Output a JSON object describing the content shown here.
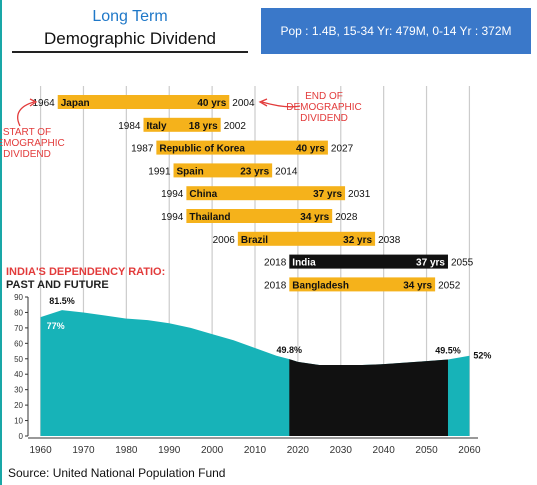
{
  "header": {
    "title_top": "Long Term",
    "title_main": "Demographic Dividend",
    "pop_box": "Pop : 1.4B, 15-34 Yr: 479M, 0-14 Yr : 372M"
  },
  "chart_data": {
    "type": "area",
    "annotations": {
      "start": "START OF DEMOGRAPHIC DIVIDEND",
      "end": "END OF DEMOGRAPHIC DIVIDEND"
    },
    "dividend_windows": [
      {
        "country": "Japan",
        "start": 1964,
        "end": 2004,
        "duration": "40 yrs"
      },
      {
        "country": "Italy",
        "start": 1984,
        "end": 2002,
        "duration": "18 yrs"
      },
      {
        "country": "Republic of Korea",
        "start": 1987,
        "end": 2027,
        "duration": "40 yrs"
      },
      {
        "country": "Spain",
        "start": 1991,
        "end": 2014,
        "duration": "23 yrs"
      },
      {
        "country": "China",
        "start": 1994,
        "end": 2031,
        "duration": "37 yrs"
      },
      {
        "country": "Thailand",
        "start": 1994,
        "end": 2028,
        "duration": "34 yrs"
      },
      {
        "country": "Brazil",
        "start": 2006,
        "end": 2038,
        "duration": "32 yrs"
      },
      {
        "country": "India",
        "start": 2018,
        "end": 2055,
        "duration": "37 yrs",
        "highlight": true
      },
      {
        "country": "Bangladesh",
        "start": 2018,
        "end": 2052,
        "duration": "34 yrs"
      }
    ],
    "dependency_title": "INDIA'S DEPENDENCY RATIO:",
    "dependency_subtitle": "PAST AND FUTURE",
    "x": [
      1960,
      1965,
      1970,
      1975,
      1980,
      1985,
      1990,
      1995,
      2000,
      2005,
      2010,
      2015,
      2018,
      2020,
      2025,
      2030,
      2035,
      2040,
      2045,
      2050,
      2055,
      2060
    ],
    "values": [
      77,
      81.5,
      80,
      78,
      76,
      75,
      73,
      70,
      66,
      62,
      57,
      52,
      49.8,
      48,
      46,
      46,
      46,
      46.5,
      47.5,
      48.5,
      49.5,
      52
    ],
    "xlim": [
      1958,
      2062
    ],
    "ylim": [
      0,
      90
    ],
    "x_ticks": [
      1960,
      1970,
      1980,
      1990,
      2000,
      2010,
      2020,
      2030,
      2040,
      2050,
      2060
    ],
    "y_ticks": [
      0,
      10,
      20,
      30,
      40,
      50,
      60,
      70,
      80,
      90
    ],
    "dark_range": [
      2018,
      2055
    ],
    "value_labels": [
      {
        "x": 1960,
        "y": 77,
        "text": "77%"
      },
      {
        "x": 1965,
        "y": 81.5,
        "text": "81.5%"
      },
      {
        "x": 2018,
        "y": 49.8,
        "text": "49.8%"
      },
      {
        "x": 2055,
        "y": 49.5,
        "text": "49.5%"
      },
      {
        "x": 2060,
        "y": 52,
        "text": "52%"
      }
    ],
    "colors": {
      "bar": "#f5b21b",
      "highlight_bar": "#111111",
      "area": "#17b3b8",
      "area_future": "#111111",
      "accent": "#e23b3b",
      "grid": "#cccccc"
    }
  },
  "footer": {
    "source": "Source: United National Population Fund"
  }
}
